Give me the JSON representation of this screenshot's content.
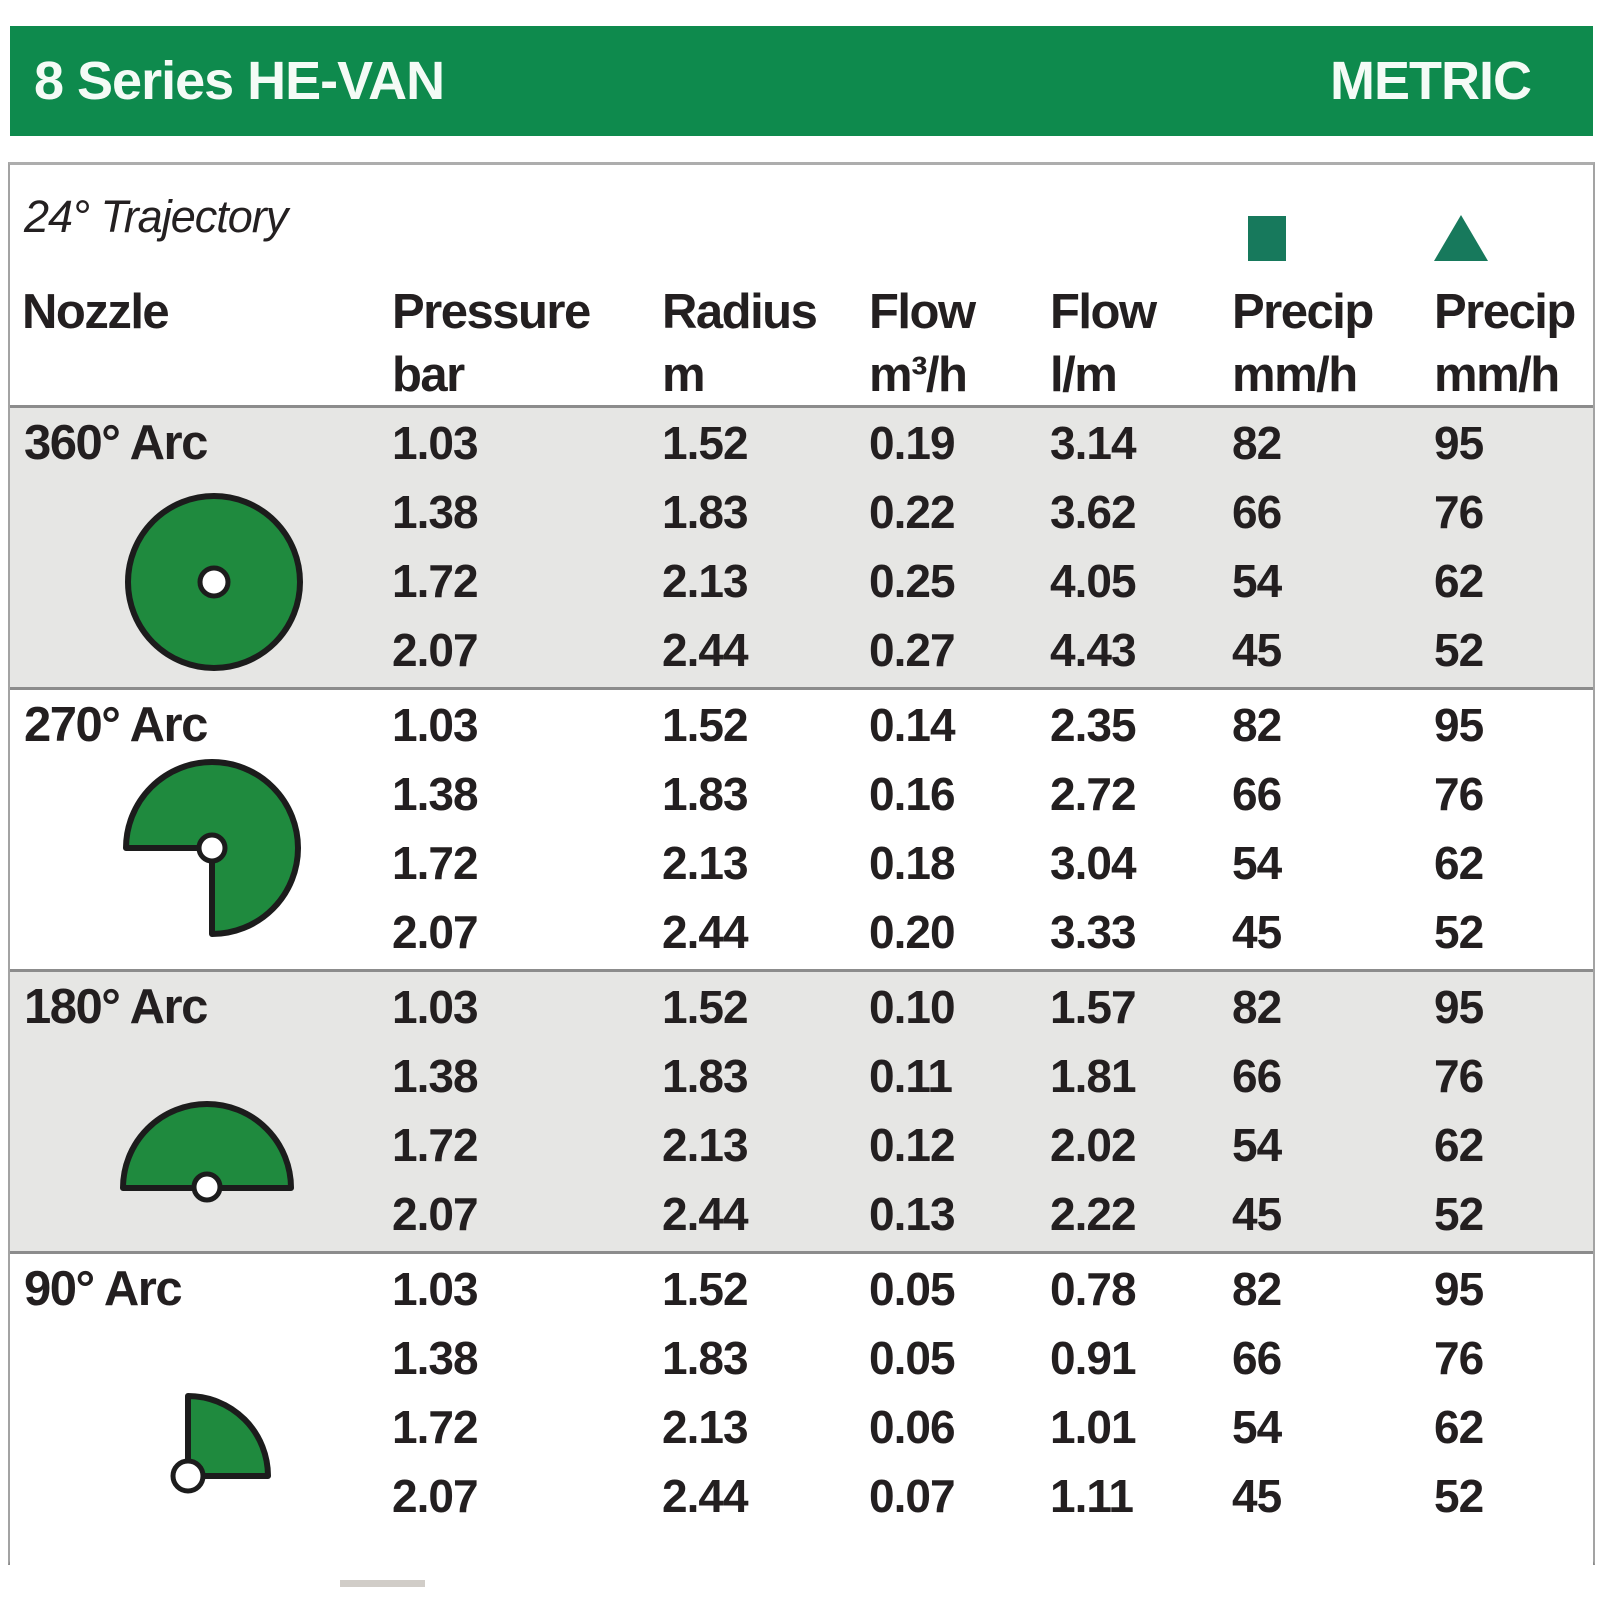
{
  "header": {
    "title": "8 Series HE-VAN",
    "tag": "METRIC"
  },
  "table": {
    "trajectory_label": "24° Trajectory",
    "columns": [
      {
        "label": "Nozzle",
        "unit": ""
      },
      {
        "label": "Pressure",
        "unit": "bar"
      },
      {
        "label": "Radius",
        "unit": "m"
      },
      {
        "label": "Flow",
        "unit": "m³/h"
      },
      {
        "label": "Flow",
        "unit": "l/m"
      },
      {
        "label": "Precip",
        "unit": "mm/h",
        "legend_icon": "precip-square"
      },
      {
        "label": "Precip",
        "unit": "mm/h",
        "legend_icon": "precip-triangle"
      }
    ],
    "sections": [
      {
        "arc_label": "360° Arc",
        "icon": "arc-360",
        "shaded": true,
        "rows": [
          {
            "pressure_bar": "1.03",
            "radius_m": "1.52",
            "flow_m3h": "0.19",
            "flow_lm": "3.14",
            "precip_sq": "82",
            "precip_tri": "95"
          },
          {
            "pressure_bar": "1.38",
            "radius_m": "1.83",
            "flow_m3h": "0.22",
            "flow_lm": "3.62",
            "precip_sq": "66",
            "precip_tri": "76"
          },
          {
            "pressure_bar": "1.72",
            "radius_m": "2.13",
            "flow_m3h": "0.25",
            "flow_lm": "4.05",
            "precip_sq": "54",
            "precip_tri": "62"
          },
          {
            "pressure_bar": "2.07",
            "radius_m": "2.44",
            "flow_m3h": "0.27",
            "flow_lm": "4.43",
            "precip_sq": "45",
            "precip_tri": "52"
          }
        ]
      },
      {
        "arc_label": "270° Arc",
        "icon": "arc-270",
        "shaded": false,
        "rows": [
          {
            "pressure_bar": "1.03",
            "radius_m": "1.52",
            "flow_m3h": "0.14",
            "flow_lm": "2.35",
            "precip_sq": "82",
            "precip_tri": "95"
          },
          {
            "pressure_bar": "1.38",
            "radius_m": "1.83",
            "flow_m3h": "0.16",
            "flow_lm": "2.72",
            "precip_sq": "66",
            "precip_tri": "76"
          },
          {
            "pressure_bar": "1.72",
            "radius_m": "2.13",
            "flow_m3h": "0.18",
            "flow_lm": "3.04",
            "precip_sq": "54",
            "precip_tri": "62"
          },
          {
            "pressure_bar": "2.07",
            "radius_m": "2.44",
            "flow_m3h": "0.20",
            "flow_lm": "3.33",
            "precip_sq": "45",
            "precip_tri": "52"
          }
        ]
      },
      {
        "arc_label": "180° Arc",
        "icon": "arc-180",
        "shaded": true,
        "rows": [
          {
            "pressure_bar": "1.03",
            "radius_m": "1.52",
            "flow_m3h": "0.10",
            "flow_lm": "1.57",
            "precip_sq": "82",
            "precip_tri": "95"
          },
          {
            "pressure_bar": "1.38",
            "radius_m": "1.83",
            "flow_m3h": "0.11",
            "flow_lm": "1.81",
            "precip_sq": "66",
            "precip_tri": "76"
          },
          {
            "pressure_bar": "1.72",
            "radius_m": "2.13",
            "flow_m3h": "0.12",
            "flow_lm": "2.02",
            "precip_sq": "54",
            "precip_tri": "62"
          },
          {
            "pressure_bar": "2.07",
            "radius_m": "2.44",
            "flow_m3h": "0.13",
            "flow_lm": "2.22",
            "precip_sq": "45",
            "precip_tri": "52"
          }
        ]
      },
      {
        "arc_label": "90° Arc",
        "icon": "arc-90",
        "shaded": false,
        "rows": [
          {
            "pressure_bar": "1.03",
            "radius_m": "1.52",
            "flow_m3h": "0.05",
            "flow_lm": "0.78",
            "precip_sq": "82",
            "precip_tri": "95"
          },
          {
            "pressure_bar": "1.38",
            "radius_m": "1.83",
            "flow_m3h": "0.05",
            "flow_lm": "0.91",
            "precip_sq": "66",
            "precip_tri": "76"
          },
          {
            "pressure_bar": "1.72",
            "radius_m": "2.13",
            "flow_m3h": "0.06",
            "flow_lm": "1.01",
            "precip_sq": "54",
            "precip_tri": "62"
          },
          {
            "pressure_bar": "2.07",
            "radius_m": "2.44",
            "flow_m3h": "0.07",
            "flow_lm": "1.11",
            "precip_sq": "45",
            "precip_tri": "52"
          }
        ]
      }
    ]
  },
  "colors": {
    "brand_green": "#0E8A4D",
    "legend_green": "#17795C",
    "icon_green": "#1F8A3E",
    "icon_outline": "#1C1C1C",
    "shaded_bg": "#E6E6E4",
    "text": "#231F20",
    "frame_border": "#A3A3A3",
    "divider": "#8C8C8C"
  }
}
